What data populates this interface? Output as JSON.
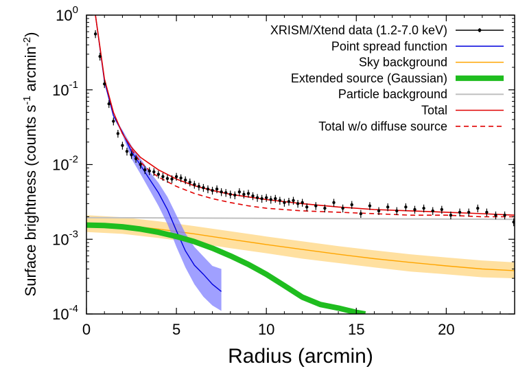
{
  "chart_data": {
    "type": "line",
    "title": "",
    "xlabel": "Radius (arcmin)",
    "ylabel": "Surface brightness (counts s",
    "ylabel_sup1": "-1",
    "ylabel_mid": " arcmin",
    "ylabel_sup2": "-2",
    "ylabel_end": ")",
    "x_scale": "linear",
    "y_scale": "log",
    "xlim": [
      0,
      23.8
    ],
    "ylim": [
      0.0001,
      1
    ],
    "x_ticks": [
      0,
      5,
      10,
      15,
      20
    ],
    "x_tick_labels": [
      "0",
      "5",
      "10",
      "15",
      "20"
    ],
    "y_ticks": [
      {
        "value": 0.0001,
        "base": "10",
        "exp": "-4"
      },
      {
        "value": 0.001,
        "base": "10",
        "exp": "-3"
      },
      {
        "value": 0.01,
        "base": "10",
        "exp": "-2"
      },
      {
        "value": 0.1,
        "base": "10",
        "exp": "-1"
      },
      {
        "value": 1,
        "base": "10",
        "exp": "0"
      }
    ],
    "grid": false,
    "legend_position": "top-right",
    "series": [
      {
        "name": "XRISM/Xtend data (1.2-7.0 keV)",
        "kind": "points",
        "color": "#000000",
        "x": [
          0.5,
          0.75,
          1.0,
          1.25,
          1.5,
          1.75,
          2.0,
          2.25,
          2.5,
          2.75,
          3.0,
          3.25,
          3.5,
          3.75,
          4.0,
          4.25,
          4.5,
          4.75,
          5.0,
          5.25,
          5.5,
          5.75,
          6.0,
          6.25,
          6.5,
          6.75,
          7.0,
          7.25,
          7.5,
          7.75,
          8.0,
          8.25,
          8.5,
          8.75,
          9.0,
          9.25,
          9.5,
          9.75,
          10.0,
          10.25,
          10.5,
          10.75,
          11.0,
          11.25,
          11.5,
          11.75,
          12.0,
          12.25,
          12.75,
          13.25,
          13.75,
          14.25,
          14.75,
          15.25,
          15.75,
          16.25,
          16.75,
          17.25,
          17.75,
          18.25,
          18.75,
          19.25,
          19.75,
          20.25,
          20.75,
          21.25,
          21.75,
          22.25,
          22.75,
          23.25,
          23.75
        ],
        "y": [
          0.56,
          0.28,
          0.12,
          0.065,
          0.038,
          0.026,
          0.018,
          0.015,
          0.0135,
          0.012,
          0.01,
          0.0085,
          0.0082,
          0.008,
          0.0074,
          0.0069,
          0.0065,
          0.0064,
          0.0069,
          0.0066,
          0.0062,
          0.0058,
          0.0054,
          0.0051,
          0.0049,
          0.0047,
          0.0045,
          0.0047,
          0.0043,
          0.0042,
          0.004,
          0.0039,
          0.0043,
          0.004,
          0.0041,
          0.0038,
          0.0036,
          0.0035,
          0.0036,
          0.0034,
          0.0035,
          0.0033,
          0.0031,
          0.0032,
          0.0033,
          0.003,
          0.0031,
          0.0027,
          0.0028,
          0.0026,
          0.0031,
          0.0026,
          0.0029,
          0.0022,
          0.0028,
          0.0024,
          0.0027,
          0.0024,
          0.0027,
          0.0025,
          0.0026,
          0.0024,
          0.0025,
          0.0021,
          0.0023,
          0.0023,
          0.0026,
          0.0023,
          0.0021,
          0.0021,
          0.0017
        ],
        "yerr_factor": 0.12
      },
      {
        "name": "Point spread function",
        "kind": "line-band",
        "color": "#0000dd",
        "band_color": "#8080ff",
        "x": [
          0.5,
          1.0,
          1.5,
          2.0,
          2.5,
          3.0,
          3.5,
          4.0,
          4.5,
          5.0,
          5.5,
          6.0,
          6.5,
          7.0,
          7.5
        ],
        "y": [
          1.0,
          0.13,
          0.045,
          0.027,
          0.015,
          0.0098,
          0.0064,
          0.0042,
          0.0025,
          0.0013,
          0.0007,
          0.00045,
          0.00034,
          0.00025,
          0.0002
        ],
        "band_lo": [
          1.0,
          0.13,
          0.044,
          0.025,
          0.012,
          0.0075,
          0.0046,
          0.0028,
          0.0016,
          0.00079,
          0.00042,
          0.00025,
          0.00017,
          0.00013,
          0.00011
        ],
        "band_hi": [
          1.0,
          0.13,
          0.046,
          0.029,
          0.018,
          0.012,
          0.0081,
          0.0057,
          0.0037,
          0.0021,
          0.0012,
          0.00079,
          0.00059,
          0.00044,
          0.0004
        ]
      },
      {
        "name": "Sky background",
        "kind": "line-band",
        "color": "#ffa500",
        "band_color": "#ffd580",
        "x": [
          0,
          2,
          4,
          6,
          8,
          10,
          12,
          14,
          16,
          18,
          20,
          22,
          23.8
        ],
        "y": [
          0.00165,
          0.00155,
          0.00137,
          0.00118,
          0.001,
          0.00085,
          0.00073,
          0.00063,
          0.00055,
          0.00049,
          0.00044,
          0.0004,
          0.00038
        ],
        "band_lo": [
          0.00125,
          0.00118,
          0.00104,
          0.0009,
          0.00076,
          0.00065,
          0.00055,
          0.00048,
          0.00042,
          0.00037,
          0.00034,
          0.00031,
          0.0003
        ],
        "band_hi": [
          0.0021,
          0.00197,
          0.00174,
          0.0015,
          0.00128,
          0.00109,
          0.00094,
          0.00081,
          0.00071,
          0.00063,
          0.00057,
          0.00052,
          0.00049
        ]
      },
      {
        "name": "Extended source (Gaussian)",
        "kind": "line",
        "color": "#1fbd1f",
        "width": 8,
        "x": [
          0,
          1,
          2,
          3,
          4,
          5,
          6,
          7,
          8,
          9,
          10,
          11,
          12,
          13,
          14,
          15,
          15.5
        ],
        "y": [
          0.00155,
          0.00153,
          0.00147,
          0.00137,
          0.00124,
          0.00109,
          0.00093,
          0.00076,
          0.0006,
          0.00046,
          0.00034,
          0.00024,
          0.000168,
          0.000134,
          0.00012,
          0.000105,
          0.0001
        ]
      },
      {
        "name": "Particle background",
        "kind": "line",
        "color": "#c0c0c0",
        "width": 2,
        "x": [
          0,
          23.8
        ],
        "y": [
          0.00195,
          0.00185
        ]
      },
      {
        "name": "Total",
        "kind": "line",
        "color": "#e00000",
        "width": 1.6,
        "x": [
          0.5,
          1.0,
          1.5,
          2.0,
          2.5,
          3.0,
          4.0,
          5.0,
          6.0,
          7.0,
          8.0,
          10.0,
          12.0,
          14.0,
          16.0,
          18.0,
          20.0,
          22.0,
          23.8
        ],
        "y": [
          1.0,
          0.14,
          0.05,
          0.026,
          0.017,
          0.0125,
          0.0085,
          0.0064,
          0.0052,
          0.0045,
          0.004,
          0.0034,
          0.003,
          0.0027,
          0.0025,
          0.0024,
          0.0023,
          0.0022,
          0.0021
        ]
      },
      {
        "name": "Total w/o diffuse source",
        "kind": "dashed",
        "color": "#e00000",
        "width": 1.6,
        "x": [
          2.5,
          3.0,
          3.5,
          4.0,
          5.0,
          6.0,
          7.0,
          8.0,
          9.0,
          10.0,
          12.0,
          14.0,
          16.0,
          18.0,
          20.0,
          22.0,
          23.8
        ],
        "y": [
          0.016,
          0.0108,
          0.0083,
          0.0068,
          0.0051,
          0.0041,
          0.0035,
          0.0031,
          0.0028,
          0.0026,
          0.0024,
          0.0023,
          0.0022,
          0.0021,
          0.0021,
          0.002,
          0.002
        ]
      }
    ]
  }
}
